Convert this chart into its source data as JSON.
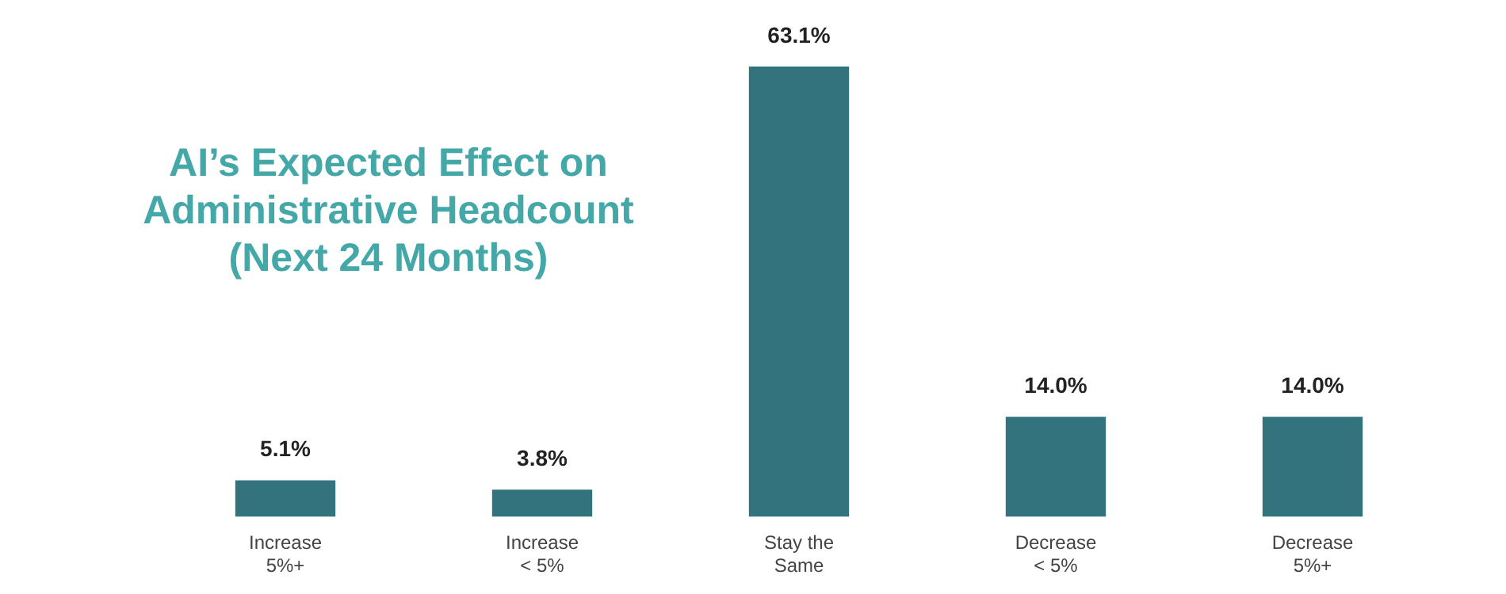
{
  "chart_data": {
    "type": "bar",
    "title": "AI’s Expected Effect on\nAdministrative Headcount\n(Next 24 Months)",
    "categories": [
      "Increase\n5%+",
      "Increase\n< 5%",
      "Stay the\nSame",
      "Decrease\n< 5%",
      "Decrease\n5%+"
    ],
    "values": [
      5.1,
      3.8,
      63.1,
      14.0,
      14.0
    ],
    "value_labels": [
      "5.1%",
      "3.8%",
      "63.1%",
      "14.0%",
      "14.0%"
    ],
    "color": "#33737d",
    "grid": false,
    "legend": false
  }
}
